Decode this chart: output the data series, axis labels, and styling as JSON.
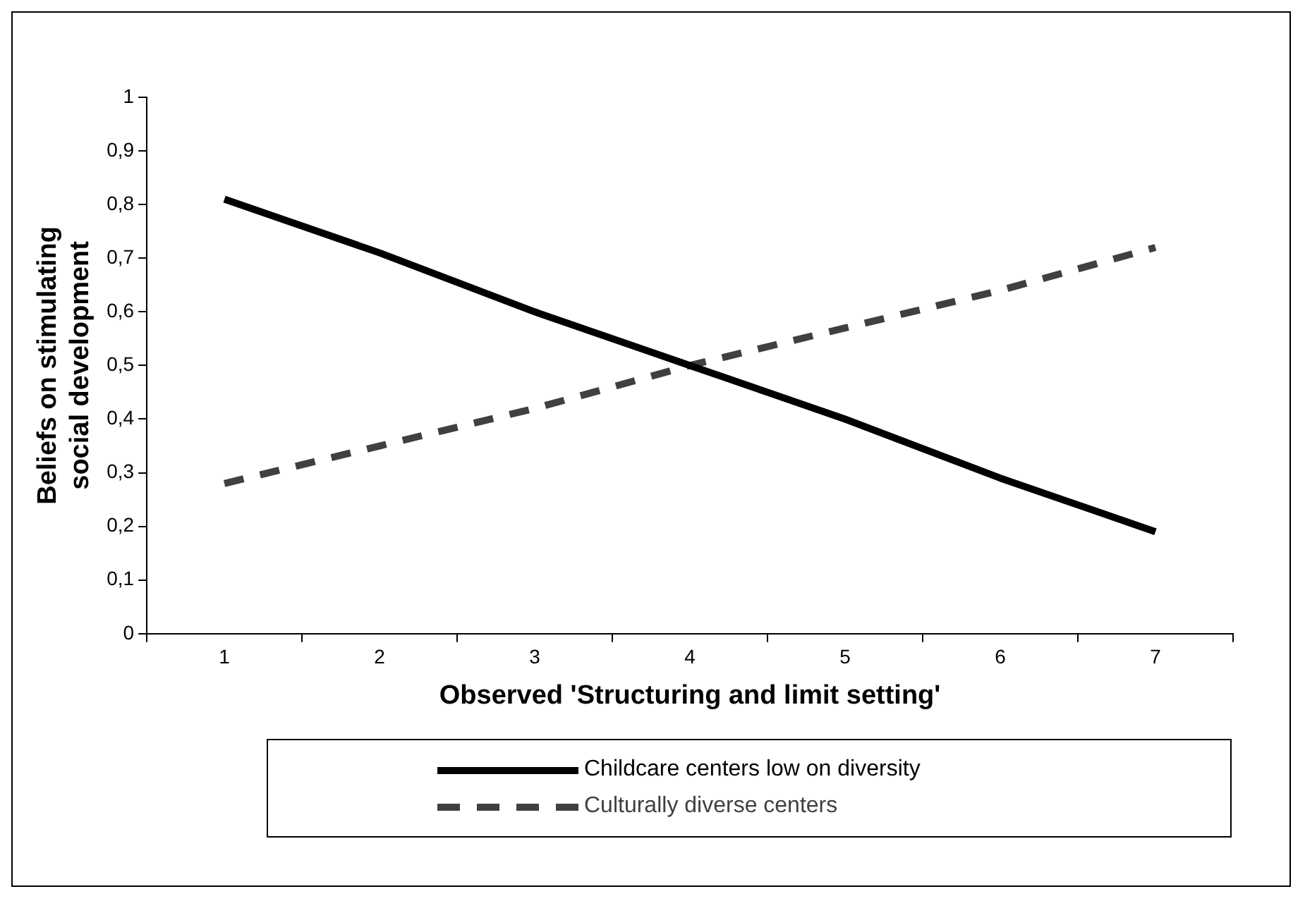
{
  "chart_data": {
    "type": "line",
    "xlabel": "Observed 'Structuring and limit setting'",
    "ylabel": "Beliefs on stimulating social development",
    "categories": [
      "1",
      "2",
      "3",
      "4",
      "5",
      "6",
      "7"
    ],
    "series": [
      {
        "name": "Childcare centers low on diversity",
        "color": "#000000",
        "line_style": "solid",
        "values": [
          0.81,
          0.71,
          0.6,
          0.5,
          0.4,
          0.29,
          0.19
        ]
      },
      {
        "name": "Culturally diverse centers",
        "color": "#404040",
        "line_style": "dashed",
        "values": [
          0.28,
          0.35,
          0.42,
          0.5,
          0.57,
          0.64,
          0.72
        ]
      }
    ],
    "ylim": [
      0,
      1
    ],
    "yticks": [
      0,
      {
        "value": 0.1,
        "label": "0,1"
      },
      {
        "value": 0.2,
        "label": "0,2"
      },
      {
        "value": 0.3,
        "label": "0,3"
      },
      {
        "value": 0.4,
        "label": "0,4"
      },
      {
        "value": 0.5,
        "label": "0,5"
      },
      {
        "value": 0.6,
        "label": "0,6"
      },
      {
        "value": 0.7,
        "label": "0,7"
      },
      {
        "value": 0.8,
        "label": "0,8"
      },
      {
        "value": 0.9,
        "label": "0,9"
      },
      1
    ],
    "grid": false,
    "legend": "bottom",
    "marker": "none"
  }
}
